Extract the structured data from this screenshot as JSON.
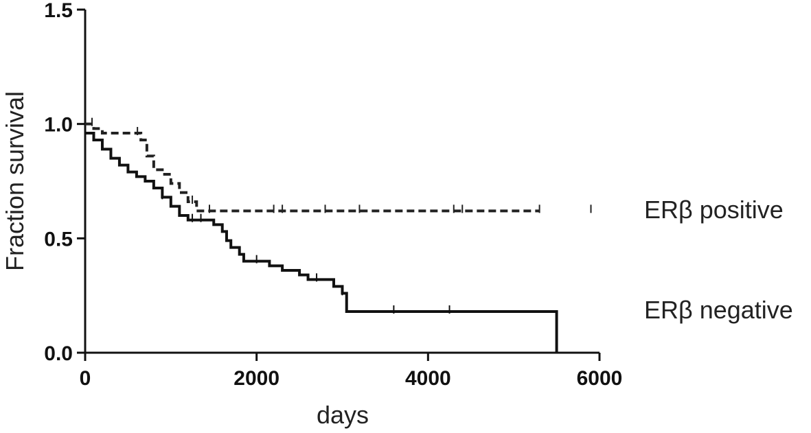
{
  "chart_data": {
    "type": "line",
    "title": "",
    "xlabel": "days",
    "ylabel": "Fraction survival",
    "xlim": [
      0,
      6000
    ],
    "ylim": [
      0,
      1.5
    ],
    "x_ticks": [
      "0",
      "2000",
      "4000",
      "6000"
    ],
    "y_ticks": [
      "0.0",
      "0.5",
      "1.0",
      "1.5"
    ],
    "grid": false,
    "series": [
      {
        "name": "ERβ positive",
        "style": "dashed",
        "color": "#222222",
        "steps": [
          [
            0,
            1.0
          ],
          [
            100,
            0.98
          ],
          [
            200,
            0.96
          ],
          [
            450,
            0.96
          ],
          [
            550,
            0.96
          ],
          [
            650,
            0.93
          ],
          [
            720,
            0.86
          ],
          [
            800,
            0.8
          ],
          [
            900,
            0.78
          ],
          [
            1000,
            0.74
          ],
          [
            1100,
            0.7
          ],
          [
            1200,
            0.66
          ],
          [
            1300,
            0.62
          ],
          [
            5300,
            0.62
          ]
        ],
        "censor_x": [
          80,
          610,
          1250,
          1450,
          2200,
          2300,
          2800,
          3200,
          4300,
          4400,
          5300,
          5900
        ]
      },
      {
        "name": "ERβ negative",
        "style": "solid",
        "color": "#111111",
        "steps": [
          [
            0,
            0.96
          ],
          [
            100,
            0.93
          ],
          [
            200,
            0.89
          ],
          [
            300,
            0.85
          ],
          [
            400,
            0.82
          ],
          [
            500,
            0.79
          ],
          [
            600,
            0.77
          ],
          [
            700,
            0.75
          ],
          [
            800,
            0.72
          ],
          [
            900,
            0.68
          ],
          [
            1000,
            0.64
          ],
          [
            1100,
            0.6
          ],
          [
            1200,
            0.58
          ],
          [
            1500,
            0.56
          ],
          [
            1600,
            0.53
          ],
          [
            1650,
            0.49
          ],
          [
            1700,
            0.46
          ],
          [
            1800,
            0.43
          ],
          [
            1850,
            0.4
          ],
          [
            2150,
            0.38
          ],
          [
            2300,
            0.36
          ],
          [
            2500,
            0.34
          ],
          [
            2600,
            0.32
          ],
          [
            2900,
            0.29
          ],
          [
            3000,
            0.26
          ],
          [
            3050,
            0.24
          ],
          [
            3050,
            0.18
          ],
          [
            5500,
            0.18
          ],
          [
            5500,
            0.0
          ]
        ],
        "censor_x": [
          900,
          1250,
          1350,
          2000,
          2700,
          3000,
          3600,
          4250
        ]
      }
    ]
  }
}
